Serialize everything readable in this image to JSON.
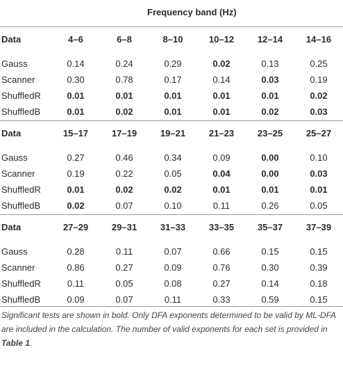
{
  "header": {
    "title": "Frequency band (Hz)"
  },
  "blocks": [
    {
      "label": "Data",
      "bands": [
        "4–6",
        "6–8",
        "8–10",
        "10–12",
        "12–14",
        "14–16"
      ],
      "rows": [
        {
          "name": "Gauss",
          "values": [
            "0.14",
            "0.24",
            "0.29",
            "0.02",
            "0.13",
            "0.25"
          ],
          "bold": [
            false,
            false,
            false,
            true,
            false,
            false
          ]
        },
        {
          "name": "Scanner",
          "values": [
            "0.30",
            "0.78",
            "0.17",
            "0.14",
            "0.03",
            "0.19"
          ],
          "bold": [
            false,
            false,
            false,
            false,
            true,
            false
          ]
        },
        {
          "name": "ShuffledR",
          "values": [
            "0.01",
            "0.01",
            "0.01",
            "0.01",
            "0.01",
            "0.02"
          ],
          "bold": [
            true,
            true,
            true,
            true,
            true,
            true
          ]
        },
        {
          "name": "ShuffledB",
          "values": [
            "0.01",
            "0.02",
            "0.01",
            "0.01",
            "0.02",
            "0.03"
          ],
          "bold": [
            true,
            true,
            true,
            true,
            true,
            true
          ]
        }
      ]
    },
    {
      "label": "Data",
      "bands": [
        "15–17",
        "17–19",
        "19–21",
        "21–23",
        "23–25",
        "25–27"
      ],
      "rows": [
        {
          "name": "Gauss",
          "values": [
            "0.27",
            "0.46",
            "0.34",
            "0.09",
            "0.00",
            "0.10"
          ],
          "bold": [
            false,
            false,
            false,
            false,
            true,
            false
          ]
        },
        {
          "name": "Scanner",
          "values": [
            "0.19",
            "0.22",
            "0.05",
            "0.04",
            "0.00",
            "0.03"
          ],
          "bold": [
            false,
            false,
            false,
            true,
            true,
            true
          ]
        },
        {
          "name": "ShuffledR",
          "values": [
            "0.01",
            "0.02",
            "0.02",
            "0.01",
            "0.01",
            "0.01"
          ],
          "bold": [
            true,
            true,
            true,
            true,
            true,
            true
          ]
        },
        {
          "name": "ShuffledB",
          "values": [
            "0.02",
            "0.07",
            "0.10",
            "0.11",
            "0.26",
            "0.05"
          ],
          "bold": [
            true,
            false,
            false,
            false,
            false,
            false
          ]
        }
      ]
    },
    {
      "label": "Data",
      "bands": [
        "27–29",
        "29–31",
        "31–33",
        "33–35",
        "35–37",
        "37–39"
      ],
      "rows": [
        {
          "name": "Gauss",
          "values": [
            "0.28",
            "0.11",
            "0.07",
            "0.66",
            "0.15",
            "0.15"
          ],
          "bold": [
            false,
            false,
            false,
            false,
            false,
            false
          ]
        },
        {
          "name": "Scanner",
          "values": [
            "0.86",
            "0.27",
            "0.09",
            "0.76",
            "0.30",
            "0.39"
          ],
          "bold": [
            false,
            false,
            false,
            false,
            false,
            false
          ]
        },
        {
          "name": "ShuffledR",
          "values": [
            "0.11",
            "0.05",
            "0.08",
            "0.27",
            "0.14",
            "0.18"
          ],
          "bold": [
            false,
            false,
            false,
            false,
            false,
            false
          ]
        },
        {
          "name": "ShuffledB",
          "values": [
            "0.09",
            "0.07",
            "0.11",
            "0.33",
            "0.59",
            "0.15"
          ],
          "bold": [
            false,
            false,
            false,
            false,
            false,
            false
          ]
        }
      ]
    }
  ],
  "footnote": {
    "text": "Significant tests are shown in bold. Only DFA exponents determined to be valid by ML-DFA are included in the calculation. The number of valid exponents for each set is provided in ",
    "ref": "Table 1",
    "end": "."
  }
}
